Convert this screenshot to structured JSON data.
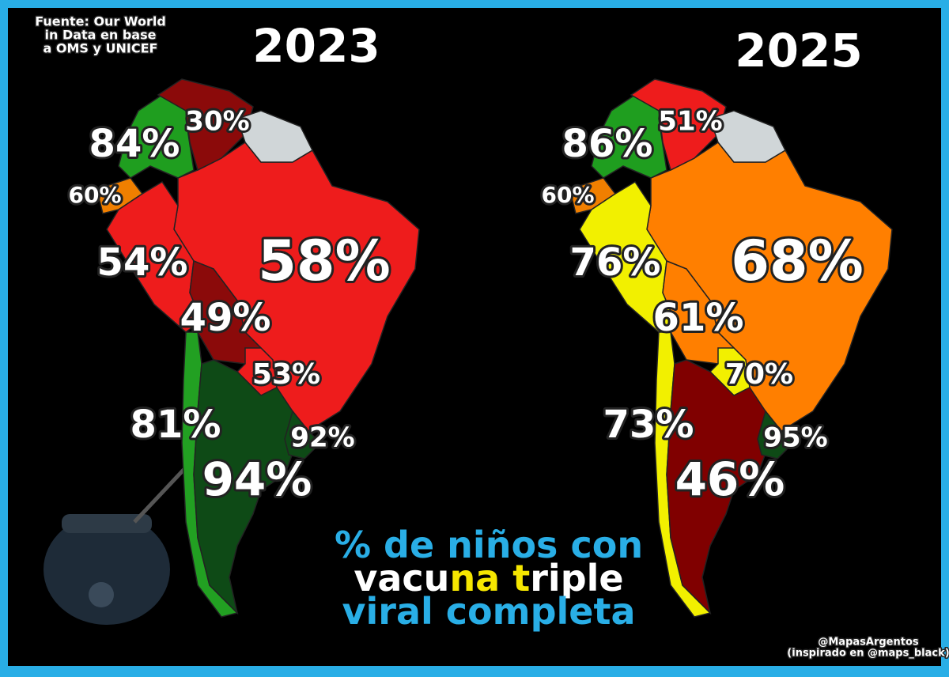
{
  "source": [
    "Fuente: Our World",
    "in Data en base",
    "a OMS y UNICEF"
  ],
  "maps": [
    {
      "year": "2023",
      "regions": [
        {
          "label": "84%",
          "color": "#1f9e1f"
        },
        {
          "label": "30%",
          "color": "#8b0a0a"
        },
        {
          "label": "60%",
          "color": "#f07f00"
        },
        {
          "label": "54%",
          "color": "#ee1c1c"
        },
        {
          "label": "49%",
          "color": "#8b0a0a"
        },
        {
          "label": "58%",
          "color": "#ee1c1c"
        },
        {
          "label": "53%",
          "color": "#ee1c1c"
        },
        {
          "label": "81%",
          "color": "#22a022"
        },
        {
          "label": "94%",
          "color": "#0e4a16"
        },
        {
          "label": "92%",
          "color": "#0e4a16"
        }
      ]
    },
    {
      "year": "2025",
      "regions": [
        {
          "label": "86%",
          "color": "#1f9e1f"
        },
        {
          "label": "51%",
          "color": "#ee1c1c"
        },
        {
          "label": "60%",
          "color": "#f07f00"
        },
        {
          "label": "76%",
          "color": "#f2f000"
        },
        {
          "label": "61%",
          "color": "#ff7f00"
        },
        {
          "label": "68%",
          "color": "#ff7f00"
        },
        {
          "label": "70%",
          "color": "#f2f000"
        },
        {
          "label": "73%",
          "color": "#f2f000"
        },
        {
          "label": "46%",
          "color": "#800000"
        },
        {
          "label": "95%",
          "color": "#0e4a16"
        }
      ]
    }
  ],
  "title": [
    [
      {
        "text": "% de niños con",
        "color": "#29aee6"
      }
    ],
    [
      {
        "text": "vacu",
        "color": "#ffffff"
      },
      {
        "text": "na t",
        "color": "#f5e600"
      },
      {
        "text": "riple",
        "color": "#ffffff"
      }
    ],
    [
      {
        "text": "viral completa",
        "color": "#29aee6"
      }
    ]
  ],
  "credit": [
    "@MapasArgentos",
    "(inspirado en @maps_black)"
  ]
}
